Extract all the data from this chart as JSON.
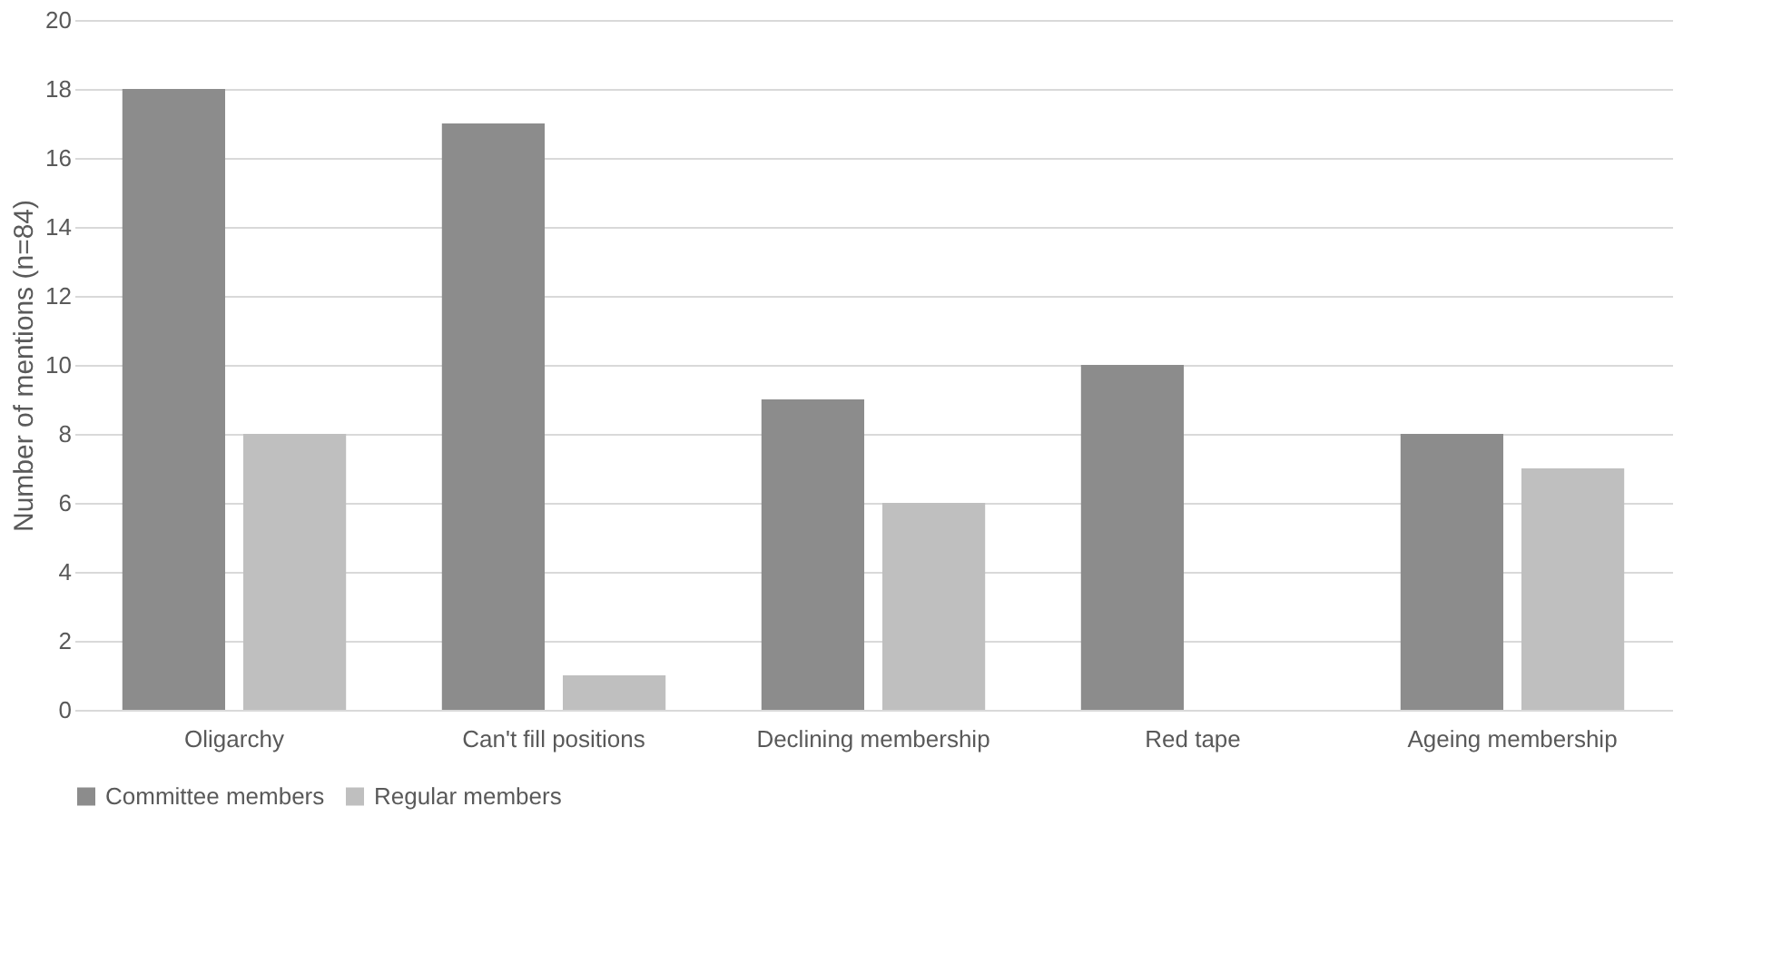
{
  "chart_data": {
    "type": "bar",
    "ylabel": "Number of mentions (n=84)",
    "categories": [
      "Oligarchy",
      "Can't fill positions",
      "Declining membership",
      "Red tape",
      "Ageing membership"
    ],
    "series": [
      {
        "name": "Committee members",
        "color": "#8c8c8c",
        "values": [
          18,
          17,
          9,
          10,
          8
        ]
      },
      {
        "name": "Regular members",
        "color": "#bfbfbf",
        "values": [
          8,
          1,
          6,
          0,
          7
        ]
      }
    ],
    "ylim": [
      0,
      20
    ],
    "yticks": [
      0,
      2,
      4,
      6,
      8,
      10,
      12,
      14,
      16,
      18,
      20
    ],
    "grid": "y",
    "legend": "bottom"
  }
}
